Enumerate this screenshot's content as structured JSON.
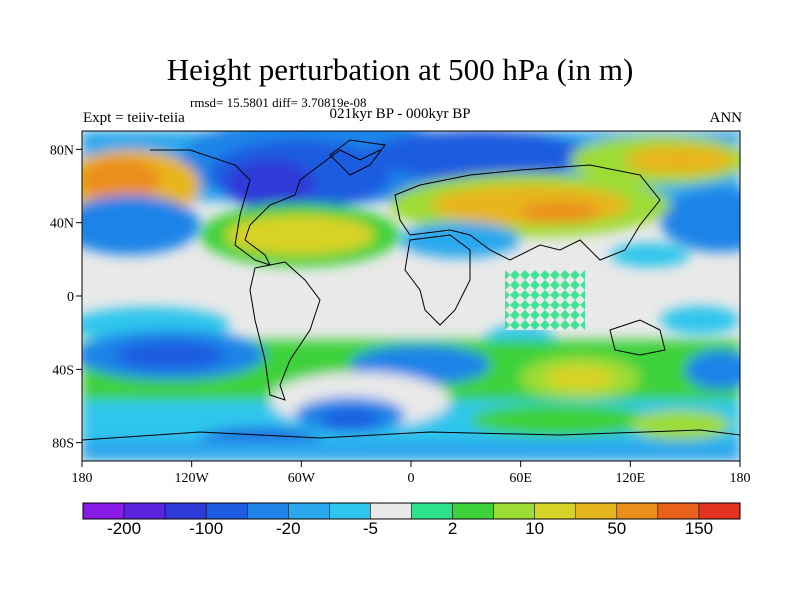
{
  "title": "Height perturbation at 500 hPa (in m)",
  "stats_line": "rmsd= 15.5801 diff= 3.70819e-08",
  "experiment_label": "Expt = teiiv-teiia",
  "period_label": "021kyr BP - 000kyr BP",
  "season_label": "ANN",
  "map": {
    "projection": "cylindrical-equidistant",
    "lon_ticks": [
      "180",
      "120W",
      "60W",
      "0",
      "60E",
      "120E",
      "180"
    ],
    "lat_ticks": [
      "80N",
      "40N",
      "0",
      "40S",
      "80S"
    ]
  },
  "colorbar": {
    "tick_labels": [
      "-200",
      "-100",
      "-20",
      "-5",
      "2",
      "10",
      "50",
      "150"
    ],
    "colors": [
      "#8a1ae6",
      "#5a23e0",
      "#2f3ad8",
      "#1d5be0",
      "#1f84e8",
      "#2ca8ee",
      "#2fc6ec",
      "#e9e9e9",
      "#2ee28c",
      "#3dd23a",
      "#9ddc34",
      "#d9d226",
      "#e7b51d",
      "#ec8e1a",
      "#e8611d",
      "#e3321d"
    ]
  }
}
